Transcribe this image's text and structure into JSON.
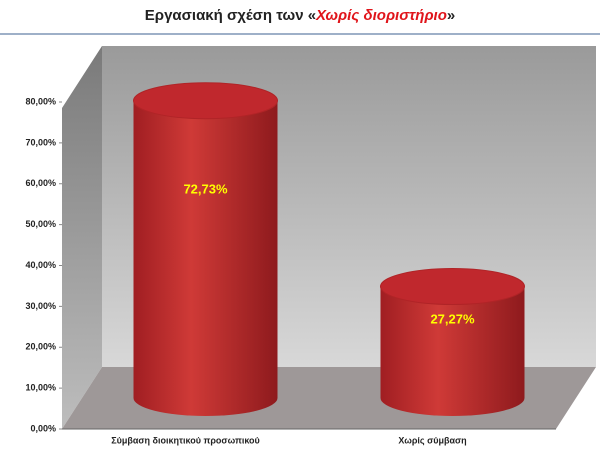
{
  "chart_data": {
    "type": "bar",
    "title": [
      "Εργασιακή σχέση των «",
      "Χωρίς διοριστήριο",
      "»"
    ],
    "categories": [
      "Σύμβαση διοικητικού προσωπικού",
      "Χωρίς σύμβαση"
    ],
    "values": [
      72.73,
      27.27
    ],
    "value_labels": [
      "72,73%",
      "27,27%"
    ],
    "color": "#c0282d",
    "ylim": [
      0,
      80
    ],
    "yticks": [
      {
        "value": 0,
        "label": "0,00%"
      },
      {
        "value": 10,
        "label": "10,00%"
      },
      {
        "value": 20,
        "label": "20,00%"
      },
      {
        "value": 30,
        "label": "30,00%"
      },
      {
        "value": 40,
        "label": "40,00%"
      },
      {
        "value": 50,
        "label": "50,00%"
      },
      {
        "value": 60,
        "label": "60,00%"
      },
      {
        "value": 70,
        "label": "70,00%"
      },
      {
        "value": 80,
        "label": "80,00%"
      }
    ]
  }
}
